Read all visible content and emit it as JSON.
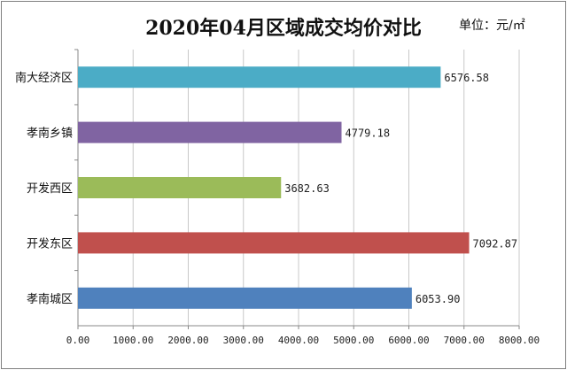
{
  "chart_data": {
    "type": "bar",
    "orientation": "horizontal",
    "title": "2020年04月区域成交均价对比",
    "unit": "单位：元/㎡",
    "categories": [
      "南大经济区",
      "孝南乡镇",
      "开发西区",
      "开发东区",
      "孝南城区"
    ],
    "values": [
      6576.58,
      4779.18,
      3682.63,
      7092.87,
      6053.9
    ],
    "value_labels": [
      "6576.58",
      "4779.18",
      "3682.63",
      "7092.87",
      "6053.90"
    ],
    "colors": [
      "#4bacc6",
      "#8064a2",
      "#9bbb59",
      "#c0504d",
      "#4f81bd"
    ],
    "xlim": [
      0,
      8000
    ],
    "xticks": [
      "0.00",
      "1000.00",
      "2000.00",
      "3000.00",
      "4000.00",
      "5000.00",
      "6000.00",
      "7000.00",
      "8000.00"
    ],
    "grid": true
  }
}
